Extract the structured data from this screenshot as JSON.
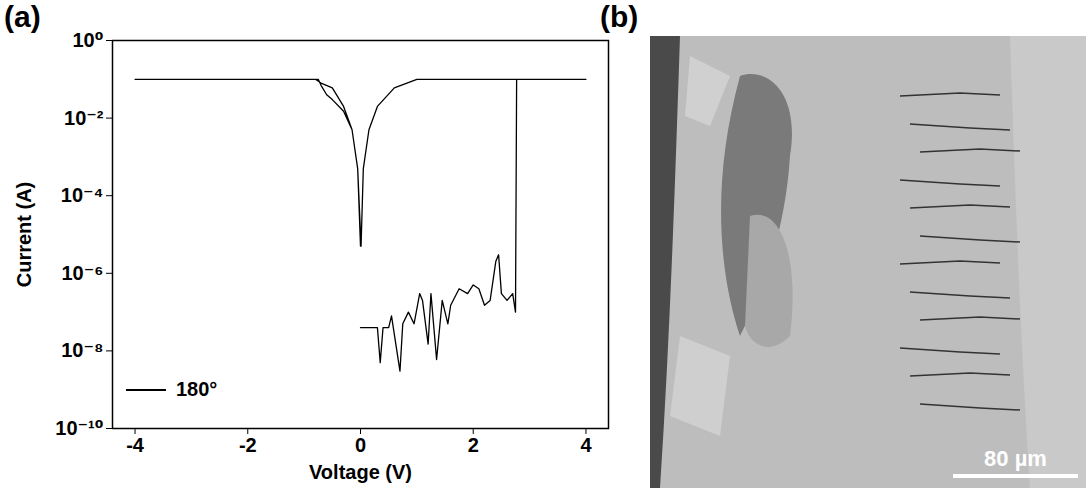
{
  "chart_data": {
    "type": "line",
    "x_label": "Voltage (V)",
    "y_label": "Current (A)",
    "log": "y",
    "xlim": [
      -4.4,
      4.4
    ],
    "xticks": [
      -4,
      -2,
      0,
      2,
      4
    ],
    "ylim": [
      1e-10,
      1
    ],
    "yticks": [
      {
        "value": 1e-10,
        "label": "10⁻¹⁰"
      },
      {
        "value": 1e-08,
        "label": "10⁻⁸"
      },
      {
        "value": 1e-06,
        "label": "10⁻⁶"
      },
      {
        "value": 0.0001,
        "label": "10⁻⁴"
      },
      {
        "value": 0.01,
        "label": "10⁻²"
      },
      {
        "value": 1,
        "label": "10⁰"
      }
    ],
    "legend": "lower left",
    "x": [
      0,
      0.3,
      0.35,
      0.4,
      0.5,
      0.55,
      0.7,
      0.75,
      0.85,
      0.95,
      1.05,
      1.1,
      1.2,
      1.25,
      1.35,
      1.45,
      1.55,
      1.6,
      1.75,
      1.9,
      2.0,
      2.1,
      2.2,
      2.3,
      2.4,
      2.45,
      2.5,
      2.6,
      2.7,
      2.75,
      2.77,
      3,
      4,
      1.0,
      0.6,
      0.3,
      0.15,
      0.05,
      0.01,
      -0.05,
      -0.15,
      -0.3,
      -0.5,
      -0.7,
      -0.8,
      -4,
      -0.75,
      -0.7,
      -0.6,
      -0.5,
      -0.3,
      -0.15,
      -0.05,
      0
    ],
    "series": [
      {
        "name": "180°",
        "color": "#000000",
        "line_style": "solid",
        "values": [
          4e-08,
          4e-08,
          5e-09,
          4e-08,
          4e-08,
          8e-08,
          3e-09,
          5e-08,
          1e-07,
          5e-08,
          3e-07,
          2e-07,
          1.5e-08,
          3e-07,
          6e-09,
          2e-07,
          5e-08,
          1.5e-07,
          4e-07,
          3e-07,
          5e-07,
          4e-07,
          1.5e-07,
          2e-07,
          2e-06,
          3e-06,
          3e-07,
          2e-07,
          3e-07,
          1e-07,
          0.1,
          0.1,
          0.1,
          0.1,
          0.06,
          0.02,
          0.005,
          0.0005,
          5e-06,
          0.0005,
          0.005,
          0.02,
          0.06,
          0.08,
          0.1,
          0.1,
          0.1,
          0.07,
          0.04,
          0.03,
          0.015,
          0.005,
          0.0005,
          5e-06
        ]
      }
    ]
  },
  "image": {
    "scale_bar": "80 µm"
  },
  "panel_labels": [
    "(a)",
    "(b)"
  ]
}
